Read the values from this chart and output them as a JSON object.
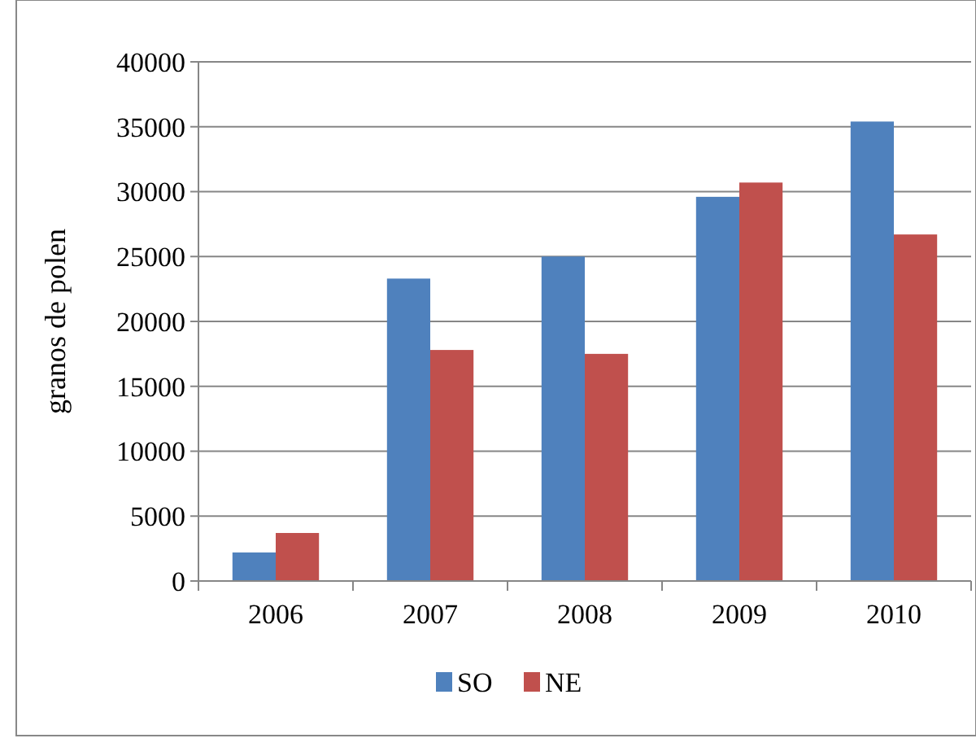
{
  "chart_data": {
    "type": "bar",
    "ylabel": "granos de polen",
    "categories": [
      "2006",
      "2007",
      "2008",
      "2009",
      "2010"
    ],
    "series": [
      {
        "name": "SO",
        "color": "#4f81bd",
        "values": [
          2200,
          23300,
          25000,
          29600,
          35400
        ]
      },
      {
        "name": "NE",
        "color": "#c0504d",
        "values": [
          3700,
          17800,
          17500,
          30700,
          26700
        ]
      }
    ],
    "ylim": [
      0,
      40000
    ],
    "yticks": [
      0,
      5000,
      10000,
      15000,
      20000,
      25000,
      30000,
      35000,
      40000
    ],
    "grid": "y",
    "legend": "bottom"
  }
}
